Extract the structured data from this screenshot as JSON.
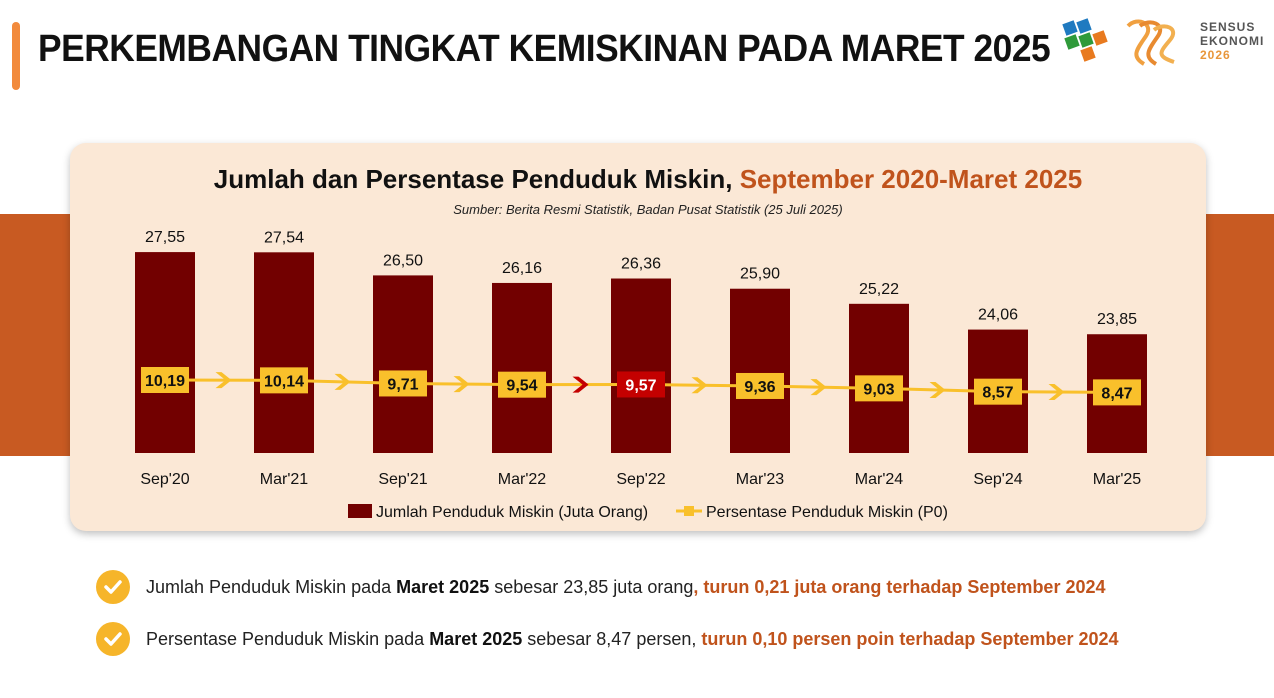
{
  "header": {
    "title": "PERKEMBANGAN TINGKAT KEMISKINAN PADA MARET 2025",
    "logo_text_1": "SENSUS",
    "logo_text_2": "EKONOMI",
    "logo_text_3": "2026"
  },
  "chart": {
    "title_main": "Jumlah dan Persentase Penduduk Miskin,",
    "title_highlight": " September 2020-Maret 2025",
    "source": "Sumber: Berita Resmi Statistik, Badan Pusat Statistik (25 Juli 2025)"
  },
  "chart_data": {
    "type": "bar",
    "categories": [
      "Sep'20",
      "Mar'21",
      "Sep'21",
      "Mar'22",
      "Sep'22",
      "Mar'23",
      "Mar'24",
      "Sep'24",
      "Mar'25"
    ],
    "series": [
      {
        "name": "Jumlah Penduduk Miskin (Juta Orang)",
        "type": "bar",
        "values": [
          27.55,
          27.54,
          26.5,
          26.16,
          26.36,
          25.9,
          25.22,
          24.06,
          23.85
        ],
        "labels": [
          "27,55",
          "27,54",
          "26,50",
          "26,16",
          "26,36",
          "25,90",
          "25,22",
          "24,06",
          "23,85"
        ],
        "color": "#720000"
      },
      {
        "name": "Persentase Penduduk Miskin (P0)",
        "type": "line",
        "values": [
          10.19,
          10.14,
          9.71,
          9.54,
          9.57,
          9.36,
          9.03,
          8.57,
          8.47
        ],
        "labels": [
          "10,19",
          "10,14",
          "9,71",
          "9,54",
          "9,57",
          "9,36",
          "9,03",
          "8,57",
          "8,47"
        ],
        "color": "#f9c02b",
        "highlight_index": 4,
        "highlight_color": "#c40000"
      }
    ],
    "legend_position": "bottom",
    "grid": false
  },
  "bullets": [
    {
      "pre": "Jumlah Penduduk Miskin pada ",
      "bold": "Maret 2025",
      "mid": " sebesar 23,85 juta orang",
      "hi": ", turun 0,21 juta orang terhadap September 2024"
    },
    {
      "pre": "Persentase Penduduk Miskin pada ",
      "bold": "Maret 2025",
      "mid": " sebesar 8,47 persen, ",
      "hi": "turun 0,10 persen poin terhadap September 2024"
    }
  ]
}
